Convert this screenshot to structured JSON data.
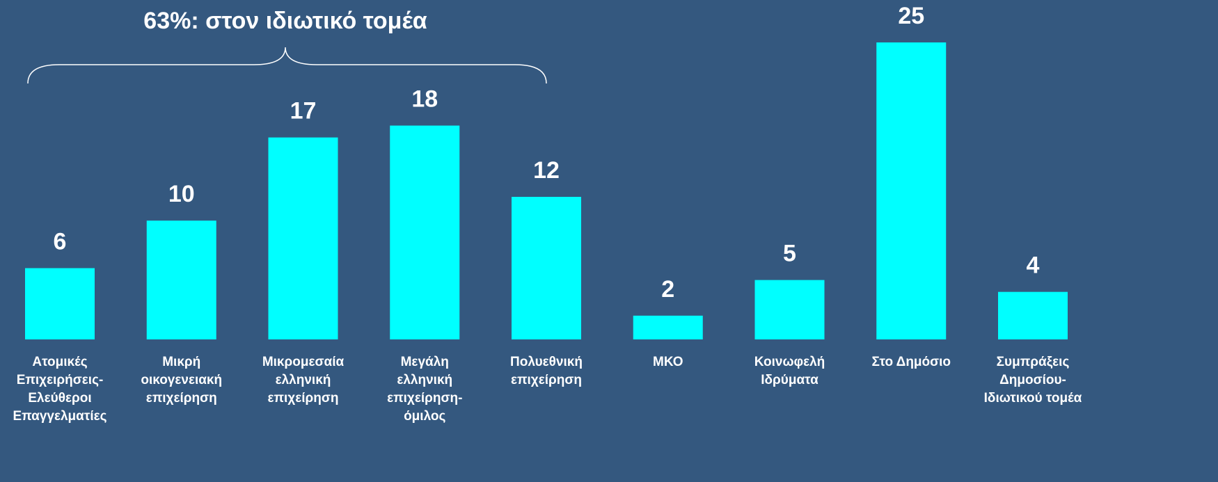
{
  "chart_data": {
    "type": "bar",
    "annotation": "63%: στον ιδιωτικό τομέα",
    "categories": [
      "Ατομικές\nΕπιχειρήσεις-\nΕλεύθεροι\nΕπαγγελματίες",
      "Μικρή\nοικογενειακή\nεπιχείρηση",
      "Μικρομεσαία\nελληνική\nεπιχείρηση",
      "Μεγάλη\nελληνική\nεπιχείρηση-\nόμιλος",
      "Πολυεθνική\nεπιχείρηση",
      "ΜΚΟ",
      "Κοινωφελή\nΙδρύματα",
      "Στο Δημόσιο",
      "Συμπράξεις\nΔημοσίου-\nΙδιωτικού τομέα"
    ],
    "values": [
      6,
      10,
      17,
      18,
      12,
      2,
      5,
      25,
      4
    ],
    "color": "#00ffff",
    "background": "#34587f",
    "text_color": "#ffffff"
  }
}
